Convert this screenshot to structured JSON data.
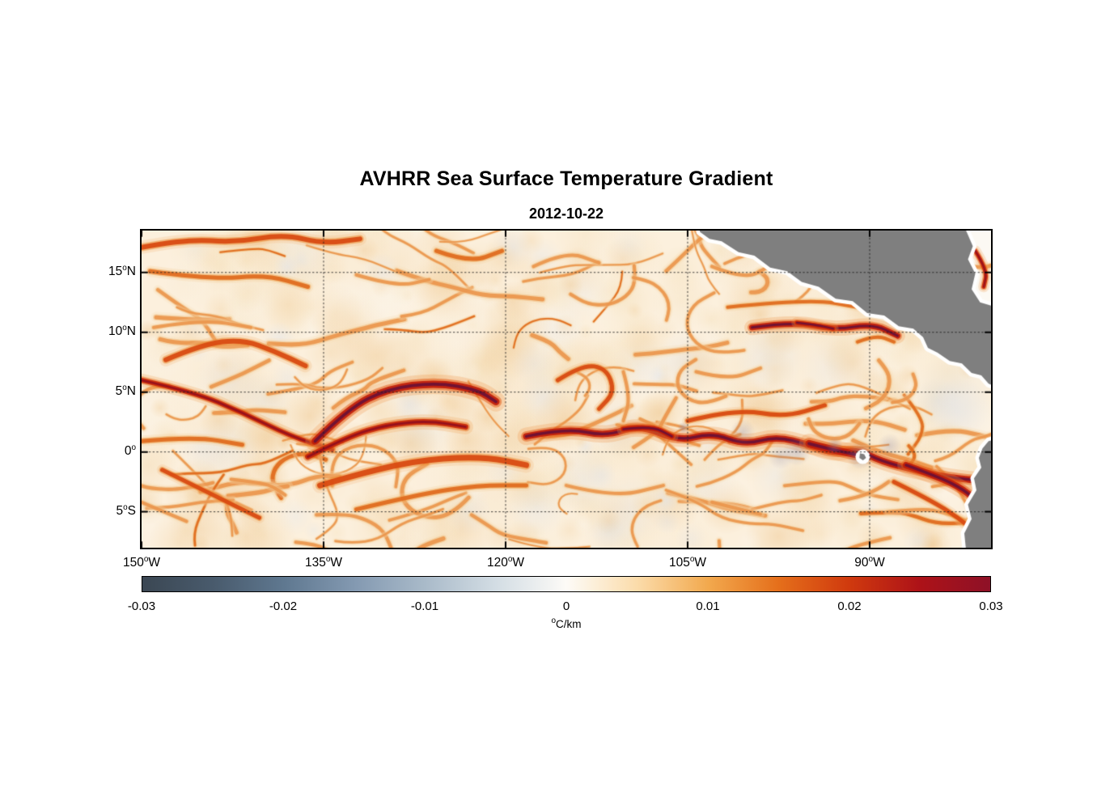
{
  "chart_data": {
    "type": "heatmap",
    "title": "AVHRR Sea Surface Temperature Gradient",
    "subtitle": "2012-10-22",
    "units": "°C/km",
    "value_range": [
      -0.03,
      0.03
    ],
    "lon_range_degW": [
      150,
      80
    ],
    "lat_range_degN": [
      18.5,
      -8
    ],
    "x_ticks": [
      {
        "value": "150",
        "sup": "o",
        "suffix": "W",
        "lonW": 150
      },
      {
        "value": "135",
        "sup": "o",
        "suffix": "W",
        "lonW": 135
      },
      {
        "value": "120",
        "sup": "o",
        "suffix": "W",
        "lonW": 120
      },
      {
        "value": "105",
        "sup": "o",
        "suffix": "W",
        "lonW": 105
      },
      {
        "value": "90",
        "sup": "o",
        "suffix": "W",
        "lonW": 90
      }
    ],
    "y_ticks": [
      {
        "value": "15",
        "sup": "o",
        "suffix": "N",
        "lat": 15
      },
      {
        "value": "10",
        "sup": "o",
        "suffix": "N",
        "lat": 10
      },
      {
        "value": "5",
        "sup": "o",
        "suffix": "N",
        "lat": 5
      },
      {
        "value": "0",
        "sup": "o",
        "suffix": "",
        "lat": 0
      },
      {
        "value": "5",
        "sup": "o",
        "suffix": "S",
        "lat": -5
      }
    ],
    "grid": {
      "lats": [
        15,
        10,
        5,
        0,
        -5
      ],
      "lons_degW": [
        135,
        120,
        105,
        90
      ],
      "style": "dotted"
    },
    "colorbar": {
      "label_sup": "o",
      "label_text": "C/km",
      "ticks": [
        {
          "label": "-0.03",
          "value": -0.03
        },
        {
          "label": "-0.02",
          "value": -0.02
        },
        {
          "label": "-0.01",
          "value": -0.01
        },
        {
          "label": "0",
          "value": 0
        },
        {
          "label": "0.01",
          "value": 0.01
        },
        {
          "label": "0.02",
          "value": 0.02
        },
        {
          "label": "0.03",
          "value": 0.03
        }
      ],
      "stops": [
        {
          "pos": 0.0,
          "color": "#3b4753"
        },
        {
          "pos": 0.085,
          "color": "#495b6d"
        },
        {
          "pos": 0.167,
          "color": "#5f7890"
        },
        {
          "pos": 0.25,
          "color": "#8399b1"
        },
        {
          "pos": 0.333,
          "color": "#a9bac9"
        },
        {
          "pos": 0.417,
          "color": "#d3dde4"
        },
        {
          "pos": 0.48,
          "color": "#f2f3f2"
        },
        {
          "pos": 0.5,
          "color": "#fdfbf7"
        },
        {
          "pos": 0.53,
          "color": "#fcf0dc"
        },
        {
          "pos": 0.583,
          "color": "#fbdcab"
        },
        {
          "pos": 0.667,
          "color": "#f2a94e"
        },
        {
          "pos": 0.75,
          "color": "#e56f1b"
        },
        {
          "pos": 0.833,
          "color": "#d03a0e"
        },
        {
          "pos": 0.917,
          "color": "#ad1218"
        },
        {
          "pos": 1.0,
          "color": "#8e1127"
        }
      ]
    },
    "land_color": "#7f7f7f",
    "ocean_base_color": "#fcf0dd",
    "coast_mask_color": "#ffffff",
    "land_polygons": [
      {
        "name": "central-america",
        "points": [
          [
            104,
            19.3
          ],
          [
            104,
            18.4
          ],
          [
            103.2,
            17.8
          ],
          [
            102.2,
            17.6
          ],
          [
            100.8,
            16.7
          ],
          [
            99.5,
            16.4
          ],
          [
            98.2,
            15.4
          ],
          [
            96.8,
            15.1
          ],
          [
            95.6,
            14.2
          ],
          [
            94.2,
            13.8
          ],
          [
            92.8,
            12.8
          ],
          [
            91.4,
            12.6
          ],
          [
            90.2,
            11.6
          ],
          [
            88.8,
            11.4
          ],
          [
            87.6,
            10.5
          ],
          [
            86.4,
            10.3
          ],
          [
            85.6,
            9.6
          ],
          [
            85.2,
            8.7
          ],
          [
            84.4,
            8.3
          ],
          [
            83.4,
            7.6
          ],
          [
            82.4,
            7.4
          ],
          [
            81.6,
            6.6
          ],
          [
            80.8,
            6.4
          ],
          [
            80.2,
            5.7
          ],
          [
            79.2,
            5.3
          ],
          [
            79.2,
            12.0
          ],
          [
            80.9,
            12.5
          ],
          [
            81.6,
            13.6
          ],
          [
            81.3,
            14.9
          ],
          [
            81.9,
            16.1
          ],
          [
            81.5,
            17.2
          ],
          [
            82.1,
            18.6
          ],
          [
            82.3,
            19.3
          ]
        ]
      },
      {
        "name": "south-america",
        "points": [
          [
            79.2,
            1.2
          ],
          [
            80.2,
            0.9
          ],
          [
            80.7,
            0.3
          ],
          [
            81.0,
            -0.5
          ],
          [
            80.8,
            -1.3
          ],
          [
            81.4,
            -2.2
          ],
          [
            81.2,
            -3.2
          ],
          [
            81.9,
            -4.4
          ],
          [
            81.6,
            -5.6
          ],
          [
            82.2,
            -6.8
          ],
          [
            82.0,
            -8.8
          ],
          [
            79.2,
            -8.8
          ]
        ]
      }
    ],
    "galapagos": {
      "center": [
        90.57,
        -0.4
      ],
      "points": [
        [
          90.8,
          -0.1
        ],
        [
          90.45,
          -0.2
        ],
        [
          90.3,
          -0.5
        ],
        [
          90.55,
          -0.7
        ],
        [
          90.85,
          -0.5
        ]
      ]
    },
    "masked_region": {
      "name": "caribbean-masked",
      "color": "#fcf9f3",
      "points": [
        [
          79.2,
          19.3
        ],
        [
          82.3,
          19.3
        ],
        [
          82.1,
          18.6
        ],
        [
          81.5,
          17.2
        ],
        [
          81.9,
          16.1
        ],
        [
          81.3,
          14.9
        ],
        [
          81.6,
          13.6
        ],
        [
          80.9,
          12.5
        ],
        [
          79.2,
          12.0
        ]
      ]
    },
    "features": [
      {
        "name": "nw-filament-1",
        "path": [
          [
            150,
            17.1
          ],
          [
            146.3,
            17.8
          ],
          [
            142.3,
            17.5
          ],
          [
            138.3,
            18.2
          ],
          [
            135,
            17.4
          ],
          [
            132,
            17.8
          ]
        ],
        "width": 6,
        "intensity": 0.8
      },
      {
        "name": "nw-filament-2",
        "path": [
          [
            149.3,
            15.1
          ],
          [
            144.3,
            14.4
          ],
          [
            139.7,
            14.8
          ],
          [
            136.3,
            13.8
          ]
        ],
        "width": 5,
        "intensity": 0.6
      },
      {
        "name": "west-arc-8n",
        "path": [
          [
            148,
            7.7
          ],
          [
            145,
            9.0
          ],
          [
            141.7,
            9.4
          ],
          [
            139,
            8.4
          ],
          [
            136.5,
            7.2
          ]
        ],
        "width": 6,
        "intensity": 0.78
      },
      {
        "name": "west-diagonal",
        "path": [
          [
            150,
            6.0
          ],
          [
            145.7,
            5.0
          ],
          [
            141.7,
            3.3
          ],
          [
            137.7,
            1.3
          ],
          [
            134.3,
            0.2
          ]
        ],
        "width": 6,
        "intensity": 0.88
      },
      {
        "name": "tiw-arc-upper",
        "path": [
          [
            135.7,
            0.9
          ],
          [
            133,
            3.6
          ],
          [
            129.7,
            5.3
          ],
          [
            125.7,
            5.8
          ],
          [
            122.3,
            5.2
          ],
          [
            120.8,
            4.2
          ]
        ],
        "width": 9,
        "intensity": 1.0
      },
      {
        "name": "tiw-arc-lower",
        "path": [
          [
            136.3,
            -0.4
          ],
          [
            133,
            1.3
          ],
          [
            129.7,
            2.3
          ],
          [
            126.3,
            2.6
          ],
          [
            123.3,
            2.1
          ]
        ],
        "width": 7,
        "intensity": 0.9
      },
      {
        "name": "siw-arc-1",
        "path": [
          [
            135.3,
            -2.8
          ],
          [
            131,
            -1.5
          ],
          [
            126.3,
            -0.6
          ],
          [
            121.7,
            -0.4
          ],
          [
            118.3,
            -1.1
          ]
        ],
        "width": 7,
        "intensity": 0.8
      },
      {
        "name": "siw-arc-2",
        "path": [
          [
            132.3,
            -4.8
          ],
          [
            127,
            -3.5
          ],
          [
            122.3,
            -2.8
          ],
          [
            118.3,
            -2.8
          ]
        ],
        "width": 5,
        "intensity": 0.6
      },
      {
        "name": "sw-diagonal-1",
        "path": [
          [
            148.3,
            -1.5
          ],
          [
            144.3,
            -3.5
          ],
          [
            140.3,
            -5.5
          ]
        ],
        "width": 5,
        "intensity": 0.7
      },
      {
        "name": "sw-diagonal-2",
        "path": [
          [
            150,
            -4.2
          ],
          [
            146.3,
            -5.8
          ]
        ],
        "width": 4,
        "intensity": 0.5
      },
      {
        "name": "equatorial-front",
        "path": [
          [
            118.3,
            1.3
          ],
          [
            115,
            2.0
          ],
          [
            111.7,
            1.3
          ],
          [
            109,
            2.3
          ],
          [
            105.7,
            0.9
          ],
          [
            103,
            1.6
          ],
          [
            100.3,
            0.6
          ],
          [
            97.7,
            1.3
          ],
          [
            95,
            0.6
          ],
          [
            93,
            -0.1
          ],
          [
            91,
            0.2
          ],
          [
            89,
            -0.8
          ],
          [
            86.3,
            -1.5
          ],
          [
            83.7,
            -2.1
          ],
          [
            80,
            -2.5
          ]
        ],
        "width": 8,
        "intensity": 0.96
      },
      {
        "name": "equatorial-core-110w",
        "path": [
          [
            110.3,
            1.9
          ],
          [
            108,
            2.2
          ],
          [
            106.3,
            1.3
          ]
        ],
        "width": 6,
        "intensity": 1.0
      },
      {
        "name": "equatorial-core-93w",
        "path": [
          [
            95,
            0.7
          ],
          [
            93.3,
            0.25
          ],
          [
            91.2,
            -0.2
          ]
        ],
        "width": 9,
        "intensity": 1.0
      },
      {
        "name": "necc-front",
        "path": [
          [
            105,
            2.6
          ],
          [
            101,
            3.6
          ],
          [
            97,
            2.9
          ],
          [
            93.7,
            3.9
          ]
        ],
        "width": 5,
        "intensity": 0.7
      },
      {
        "name": "front-10n",
        "path": [
          [
            99.7,
            10.4
          ],
          [
            96.3,
            10.9
          ],
          [
            93,
            10.2
          ],
          [
            89.7,
            10.7
          ],
          [
            87.7,
            9.7
          ]
        ],
        "width": 7,
        "intensity": 0.95
      },
      {
        "name": "front-10n-core",
        "path": [
          [
            96,
            10.8
          ],
          [
            94.3,
            10.6
          ],
          [
            93,
            10.3
          ]
        ],
        "width": 5,
        "intensity": 1.0
      },
      {
        "name": "streak-12n",
        "path": [
          [
            101.7,
            12.1
          ],
          [
            95,
            12.8
          ],
          [
            91,
            12.1
          ]
        ],
        "width": 4,
        "intensity": 0.55
      },
      {
        "name": "tehuantepec-curl",
        "path": [
          [
            103,
            15.5
          ],
          [
            100.3,
            14.4
          ],
          [
            98.3,
            15.5
          ]
        ],
        "width": 4,
        "intensity": 0.5
      },
      {
        "name": "north-swirl-1",
        "path": [
          [
            125.7,
            16.8
          ],
          [
            123,
            15.8
          ],
          [
            120.3,
            16.8
          ]
        ],
        "width": 5,
        "intensity": 0.65
      },
      {
        "name": "north-swirl-2",
        "path": [
          [
            117.7,
            15.5
          ],
          [
            115,
            16.8
          ],
          [
            112.3,
            15.8
          ]
        ],
        "width": 4,
        "intensity": 0.5
      },
      {
        "name": "hook-113w",
        "path": [
          [
            115.7,
            6.0
          ],
          [
            113.7,
            7.3
          ],
          [
            111.7,
            7.0
          ],
          [
            111,
            5.0
          ],
          [
            112.3,
            3.6
          ]
        ],
        "width": 5,
        "intensity": 0.75
      },
      {
        "name": "squiggle-110w",
        "path": [
          [
            110.3,
            6.7
          ],
          [
            109.7,
            4.6
          ],
          [
            110.3,
            2.6
          ]
        ],
        "width": 4,
        "intensity": 0.5
      },
      {
        "name": "peru-coastal-front",
        "path": [
          [
            87,
            -1.1
          ],
          [
            84.3,
            -2.1
          ],
          [
            82.3,
            -3.1
          ],
          [
            80.7,
            -4.5
          ],
          [
            80,
            -5.2
          ]
        ],
        "width": 8,
        "intensity": 1.0
      },
      {
        "name": "peru-coastal-inner",
        "path": [
          [
            88,
            -2.5
          ],
          [
            85,
            -4.0
          ],
          [
            82.7,
            -5.5
          ],
          [
            81.2,
            -6.8
          ]
        ],
        "width": 5,
        "intensity": 0.7
      },
      {
        "name": "squiggle-7n-east",
        "path": [
          [
            104.3,
            6.7
          ],
          [
            101.7,
            6.0
          ],
          [
            99,
            7.0
          ]
        ],
        "width": 4,
        "intensity": 0.5
      },
      {
        "name": "streak-14n-130w",
        "path": [
          [
            132.3,
            14.8
          ],
          [
            129,
            13.8
          ],
          [
            126.3,
            14.4
          ]
        ],
        "width": 4,
        "intensity": 0.5
      },
      {
        "name": "streak-11n-west",
        "path": [
          [
            149,
            10.4
          ],
          [
            145,
            11.1
          ],
          [
            141,
            10.4
          ]
        ],
        "width": 4,
        "intensity": 0.45
      },
      {
        "name": "south-squiggle-1",
        "path": [
          [
            115,
            -2.8
          ],
          [
            111,
            -3.8
          ],
          [
            107,
            -2.8
          ]
        ],
        "width": 4,
        "intensity": 0.45
      },
      {
        "name": "south-squiggle-2",
        "path": [
          [
            103,
            -4.2
          ],
          [
            99,
            -5.2
          ]
        ],
        "width": 4,
        "intensity": 0.4
      },
      {
        "name": "west-equator-band",
        "path": [
          [
            150,
            0.9
          ],
          [
            145.7,
            1.3
          ],
          [
            141.7,
            0.6
          ]
        ],
        "width": 5,
        "intensity": 0.6
      },
      {
        "name": "caribbean-streak",
        "path": [
          [
            81.3,
            16.8
          ],
          [
            80.3,
            15.2
          ],
          [
            80.6,
            13.8
          ]
        ],
        "width": 5,
        "intensity": 0.85
      },
      {
        "name": "coast-streak-90w",
        "path": [
          [
            92.5,
            13.2
          ],
          [
            90.5,
            12.2
          ],
          [
            88.6,
            11.6
          ]
        ],
        "width": 4,
        "intensity": 0.7
      },
      {
        "name": "costa-rica-dome",
        "path": [
          [
            91,
            9.2
          ],
          [
            89.5,
            9.8
          ],
          [
            88,
            9.2
          ]
        ],
        "width": 4,
        "intensity": 0.6
      }
    ]
  }
}
